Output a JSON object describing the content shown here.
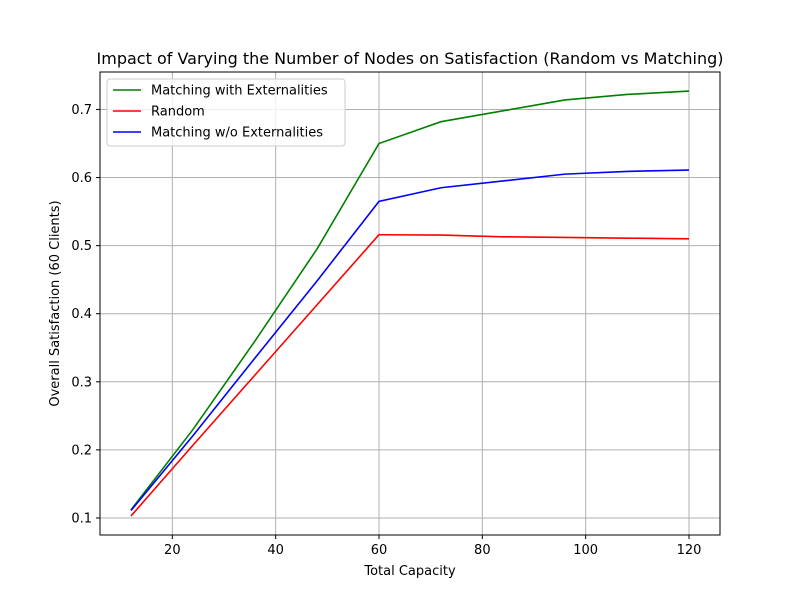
{
  "chart_data": {
    "type": "line",
    "title": "Impact of Varying the Number of Nodes on Satisfaction (Random vs Matching)",
    "xlabel": "Total Capacity",
    "ylabel": "Overall Satisfaction (60 Clients)",
    "xlim": [
      6,
      126
    ],
    "ylim": [
      0.075,
      0.755
    ],
    "xticks": [
      20,
      40,
      60,
      80,
      100,
      120
    ],
    "yticks": [
      0.1,
      0.2,
      0.3,
      0.4,
      0.5,
      0.6,
      0.7
    ],
    "xtick_labels": [
      "20",
      "40",
      "60",
      "80",
      "100",
      "120"
    ],
    "ytick_labels": [
      "0.1",
      "0.2",
      "0.3",
      "0.4",
      "0.5",
      "0.6",
      "0.7"
    ],
    "grid": true,
    "legend_position": "upper-left",
    "x": [
      12,
      24,
      36,
      48,
      60,
      72,
      84,
      96,
      108,
      120
    ],
    "series": [
      {
        "name": "Matching with Externalities",
        "color": "#008000",
        "values": [
          0.112,
          0.23,
          0.36,
          0.495,
          0.65,
          0.682,
          0.698,
          0.714,
          0.722,
          0.727
        ]
      },
      {
        "name": "Random",
        "color": "#ff0000",
        "values": [
          0.103,
          0.207,
          0.31,
          0.413,
          0.516,
          0.5155,
          0.513,
          0.512,
          0.511,
          0.51
        ]
      },
      {
        "name": "Matching w/o Externalities",
        "color": "#0000ff",
        "values": [
          0.111,
          0.221,
          0.335,
          0.448,
          0.565,
          0.585,
          0.595,
          0.605,
          0.609,
          0.611
        ]
      }
    ]
  }
}
